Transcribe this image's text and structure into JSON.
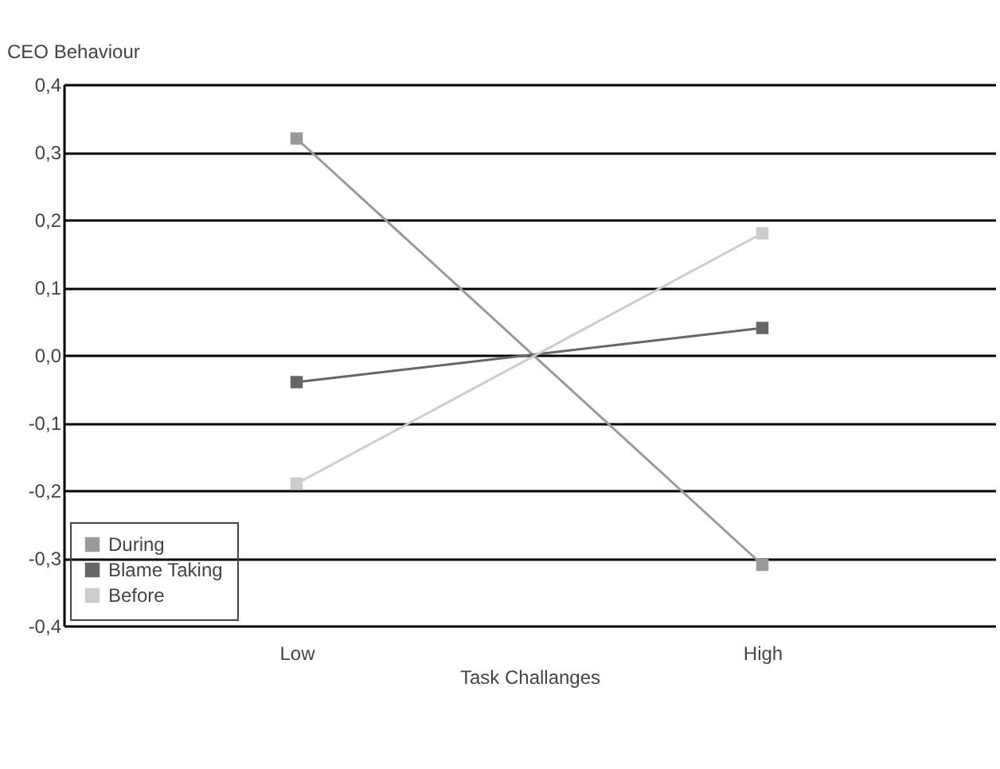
{
  "chart_data": {
    "type": "line",
    "xlabel": "Task Challanges",
    "ylabel": "CEO Behaviour",
    "categories": [
      "Low",
      "High"
    ],
    "series": [
      {
        "name": "During",
        "color": "#999999",
        "values": [
          0.32,
          -0.31
        ]
      },
      {
        "name": "Blame Taking",
        "color": "#666666",
        "values": [
          -0.04,
          0.04
        ]
      },
      {
        "name": "Before",
        "color": "#cccccc",
        "values": [
          -0.19,
          0.18
        ]
      }
    ],
    "ylim": [
      -0.4,
      0.4
    ],
    "yticks": [
      {
        "value": -0.4,
        "label": "-0,4"
      },
      {
        "value": -0.3,
        "label": "-0,3"
      },
      {
        "value": -0.2,
        "label": "-0,2"
      },
      {
        "value": -0.1,
        "label": "-0,1"
      },
      {
        "value": 0,
        "label": "0,0"
      },
      {
        "value": 0.1,
        "label": "0,1"
      },
      {
        "value": 0.2,
        "label": "0,2"
      },
      {
        "value": 0.3,
        "label": "0,3"
      },
      {
        "value": 0.4,
        "label": "0,4"
      }
    ],
    "grid": "y",
    "legend": "bottom left",
    "marker": "square",
    "line_style": "solid"
  }
}
